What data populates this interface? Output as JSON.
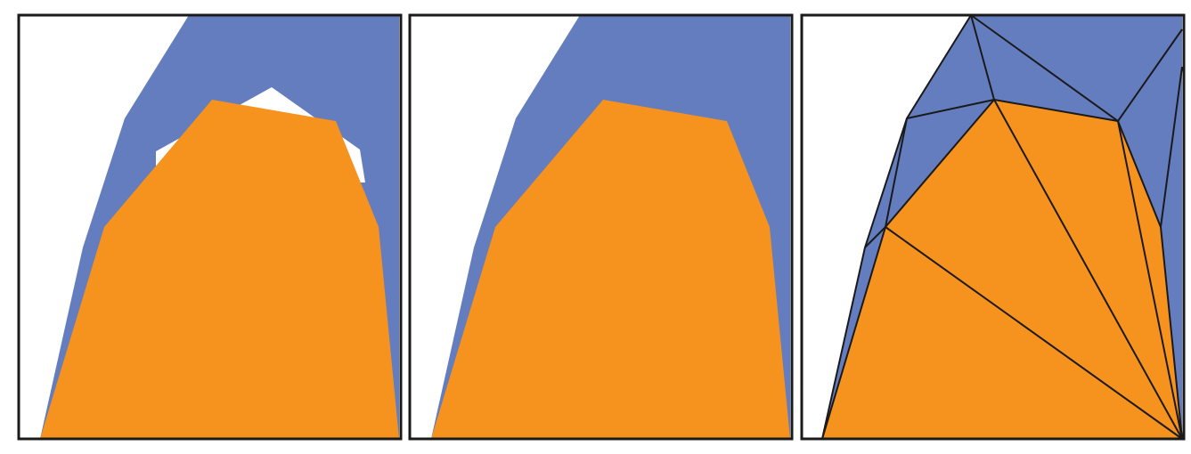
{
  "colors": {
    "blue_region": "#647dbf",
    "orange_region": "#f6921e",
    "background": "#ffffff",
    "outline": "#1a1a1a"
  },
  "panels": [
    {
      "id": "panel-overlap",
      "description_visible": "",
      "layers": [
        "blue-region",
        "white-hole",
        "orange-region"
      ]
    },
    {
      "id": "panel-union",
      "description_visible": "",
      "layers": [
        "blue-region",
        "orange-region"
      ]
    },
    {
      "id": "panel-triangulation",
      "description_visible": "",
      "layers": [
        "blue-region",
        "orange-region",
        "mesh-edges"
      ]
    }
  ]
}
